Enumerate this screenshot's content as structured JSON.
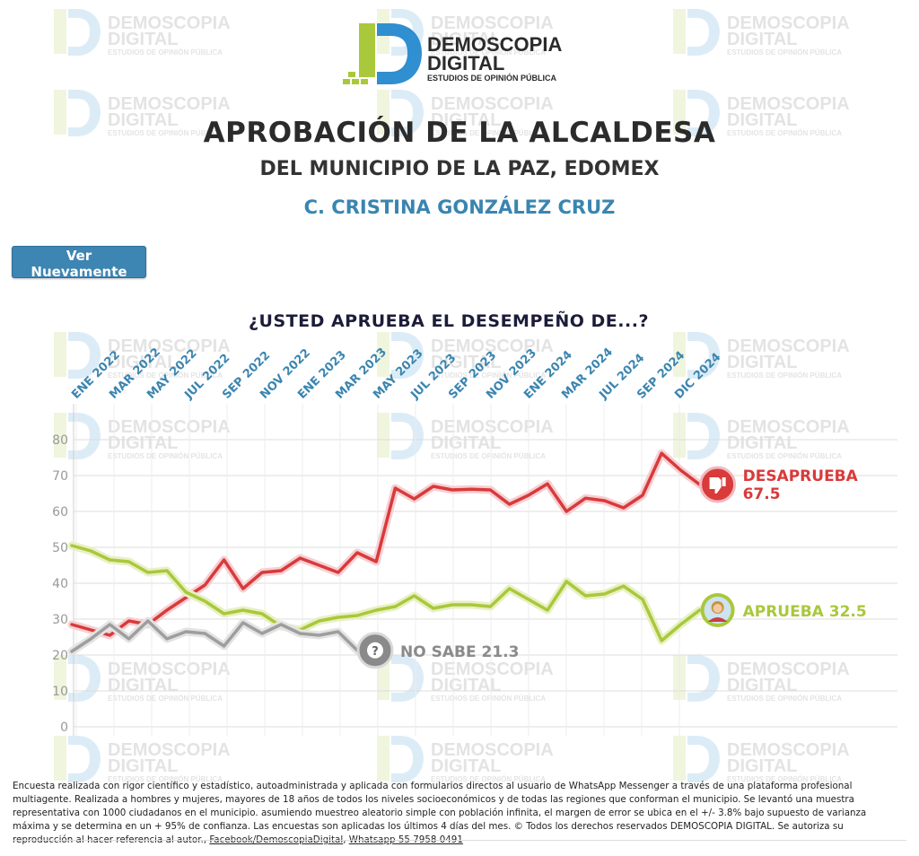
{
  "brand": {
    "line1": "DEMOSCOPIA",
    "line2": "DIGITAL",
    "line3": "ESTUDIOS DE OPINIÓN PÚBLICA",
    "colors": {
      "green": "#a9c83b",
      "blue": "#2f8fd0",
      "dark": "#2b2b2b"
    }
  },
  "header": {
    "title": "APROBACIÓN DE LA ALCALDESA",
    "subtitle": "DEL MUNICIPIO DE LA PAZ, EDOMEX",
    "name": "C. CRISTINA GONZÁLEZ CRUZ"
  },
  "replay_button": {
    "label": "Ver Nuevamente"
  },
  "question": "¿USTED APRUEBA EL DESEMPEÑO DE...?",
  "chart_data": {
    "type": "line",
    "x_tick_labels": [
      "ENE 2022",
      "MAR 2022",
      "MAY 2022",
      "JUL 2022",
      "SEP 2022",
      "NOV 2022",
      "ENE 2023",
      "MAR 2023",
      "MAY 2023",
      "JUL 2023",
      "SEP 2023",
      "NOV 2023",
      "ENE 2024",
      "MAR 2024",
      "JUL 2024",
      "SEP 2024",
      "DIC 2024"
    ],
    "y_ticks": [
      0,
      10,
      20,
      30,
      40,
      50,
      60,
      70,
      80
    ],
    "ylim": [
      0,
      85
    ],
    "grid": true,
    "series": [
      {
        "name": "DESAPRUEBA",
        "color": "#d93a3a",
        "halo": "#f6cfd3",
        "end_label": "67.5",
        "end_icon": "thumbs-down-icon",
        "values": [
          28.5,
          27,
          25.5,
          29.5,
          28.5,
          32.5,
          36,
          39.5,
          46.5,
          38.5,
          43,
          43.5,
          47,
          45,
          43,
          48.5,
          46,
          66.5,
          63.5,
          67,
          66,
          66.2,
          66,
          62,
          64.5,
          67.7,
          60,
          63.7,
          63,
          61,
          64.5,
          76.2,
          71.5,
          67.5
        ]
      },
      {
        "name": "APRUEBA",
        "color": "#a9c83b",
        "halo": "#e8f0c4",
        "end_label": "32.5",
        "end_icon": "person-avatar-icon",
        "values": [
          50.5,
          49,
          46.5,
          46,
          43,
          43.5,
          37.5,
          35,
          31.5,
          32.5,
          31.5,
          28,
          27,
          29.5,
          30.5,
          31,
          32.5,
          33.5,
          36.5,
          33,
          34,
          34,
          33.5,
          38.5,
          35.5,
          32.5,
          40.5,
          36.5,
          37,
          39.2,
          35.5,
          24,
          28.5,
          32.5
        ]
      },
      {
        "name": "NO SABE",
        "color": "#9e9e9e",
        "halo": "#e3e3e3",
        "end_label": "21.3",
        "end_icon": "question-icon",
        "values": [
          21,
          24.5,
          28.5,
          24.5,
          29.5,
          24.5,
          26.5,
          26,
          22.5,
          29,
          26,
          28.5,
          26,
          25.5,
          26.5,
          21.3
        ]
      }
    ],
    "end_labels": {
      "desaprueba": {
        "line1": "DESAPRUEBA",
        "line2": "67.5"
      },
      "aprueba": {
        "text": "APRUEBA 32.5"
      },
      "nosabe": {
        "text": "NO SABE 21.3"
      }
    }
  },
  "footnote": {
    "text": "Encuesta realizada con rigor científico y estadístico, autoadministrada y aplicada con formularios directos al usuario de WhatsApp Messenger a través de una plataforma profesional multiagente. Realizada a hombres y mujeres, mayores de 18 años de todos los niveles socioeconómicos y de todas las regiones que conforman el municipio. Se levantó una muestra representativa con 1000 ciudadanos en el municipio. asumiendo muestreo aleatorio simple con población infinita, el margen de error se ubica en el +/- 3.8% bajo supuesto de varianza máxima y se determina en un + 95% de confianza. Las encuestas son aplicadas los últimos 4 días del mes. © Todos los derechos reservados DEMOSCOPIA DIGITAL. Se autoriza su reproducción al hacer referencia al autor.,",
    "link1": "Facebook/DemoscopiaDigital",
    "separator": ",",
    "link2": "Whatsapp 55 7958 0491"
  }
}
